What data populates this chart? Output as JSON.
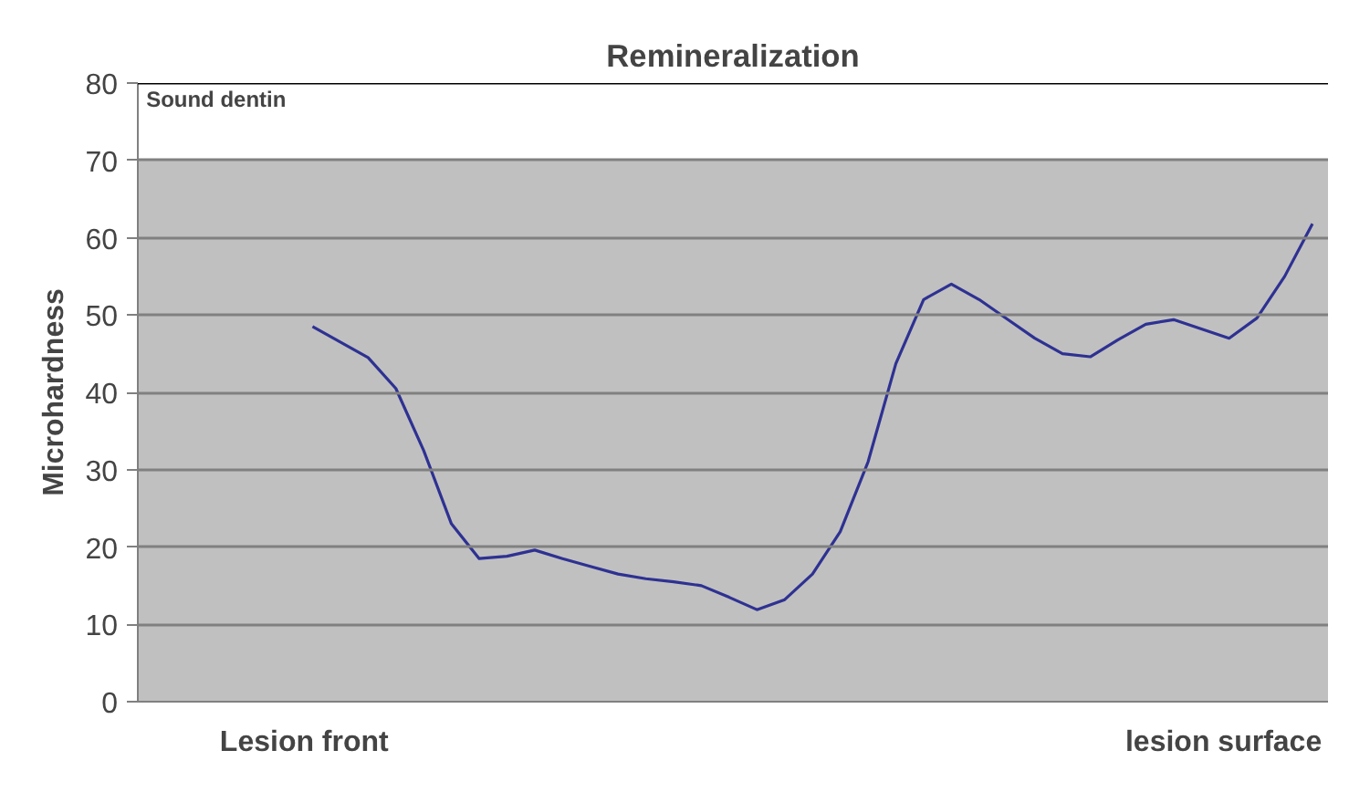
{
  "chart_data": {
    "type": "line",
    "title": "Remineralization",
    "ylabel": "Microhardness",
    "categories": [
      null,
      null,
      null,
      null,
      null,
      null,
      null,
      null,
      null,
      null,
      null,
      null,
      null,
      null,
      null,
      null,
      null,
      null,
      null,
      null,
      null,
      null,
      null,
      null,
      null,
      null,
      null,
      null,
      null,
      null,
      null,
      null,
      null,
      null,
      null,
      null,
      null
    ],
    "series": [
      {
        "color": "#2e3192",
        "values": [
          48.5,
          46.5,
          44.5,
          40.5,
          32.5,
          23,
          18.5,
          18.8,
          19.6,
          18.5,
          17.5,
          16.5,
          15.9,
          15.5,
          15,
          13.5,
          11.9,
          13.2,
          16.5,
          22,
          31,
          43.7,
          52,
          54,
          52,
          49.5,
          47,
          45,
          44.6,
          46.8,
          48.8,
          49.4,
          48.2,
          47,
          49.6,
          55,
          61.8
        ]
      }
    ],
    "ylim": [
      0,
      80
    ],
    "yticks": [
      0,
      10,
      20,
      30,
      40,
      50,
      60,
      70,
      80
    ],
    "grid": "y",
    "marker": "none",
    "line_style": "solid",
    "ref_lines": [
      {
        "axis": "y",
        "value": 80,
        "label": "Sound dentin",
        "color": "#000000"
      }
    ],
    "bands": [
      {
        "axis": "y",
        "from": 0,
        "to": 70,
        "color": "#c0c0c0"
      }
    ],
    "annotations": [
      "Lesion front",
      "lesion surface"
    ]
  }
}
